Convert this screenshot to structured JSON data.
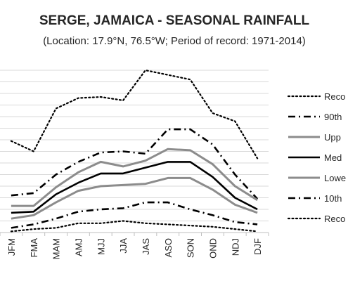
{
  "chart_data": {
    "type": "line",
    "title": "SERGE, JAMAICA - SEASONAL RAINFALL",
    "subtitle": "(Location: 17.9°N, 76.5°W; Period of record: 1971-2014)",
    "categories": [
      "JFM",
      "FMA",
      "MAM",
      "AMJ",
      "MJJ",
      "JJA",
      "JAS",
      "ASO",
      "SON",
      "OND",
      "NDJ",
      "DJF"
    ],
    "ylim": [
      0,
      14
    ],
    "grid": true,
    "legend_position": "right",
    "series": [
      {
        "name": "Reco",
        "style": "dotted",
        "color": "#000000",
        "values": [
          7.9,
          7.0,
          10.7,
          11.6,
          11.7,
          11.4,
          14.0,
          13.6,
          13.2,
          10.3,
          9.6,
          6.4
        ]
      },
      {
        "name": "90th",
        "style": "dashdot",
        "color": "#000000",
        "values": [
          3.2,
          3.4,
          5.0,
          6.1,
          6.9,
          7.0,
          6.8,
          8.9,
          8.9,
          7.6,
          5.0,
          2.9
        ]
      },
      {
        "name": "Upp",
        "style": "solid",
        "color": "#8c8c8c",
        "values": [
          2.3,
          2.3,
          3.9,
          5.2,
          6.1,
          5.7,
          6.2,
          7.2,
          7.1,
          5.9,
          4.0,
          2.8
        ]
      },
      {
        "name": "Med",
        "style": "solid",
        "color": "#000000",
        "values": [
          1.7,
          1.8,
          3.3,
          4.3,
          5.1,
          5.1,
          5.6,
          6.1,
          6.1,
          4.8,
          3.0,
          2.0
        ]
      },
      {
        "name": "Lowe",
        "style": "solid",
        "color": "#8c8c8c",
        "values": [
          1.2,
          1.5,
          2.6,
          3.6,
          4.0,
          4.1,
          4.2,
          4.7,
          4.7,
          3.7,
          2.4,
          1.7
        ]
      },
      {
        "name": "10th",
        "style": "dashdot",
        "color": "#000000",
        "values": [
          0.4,
          0.7,
          1.2,
          1.8,
          2.0,
          2.1,
          2.6,
          2.6,
          2.0,
          1.5,
          0.9,
          0.7
        ]
      },
      {
        "name": "Reco",
        "style": "dotted",
        "color": "#000000",
        "values": [
          0.1,
          0.3,
          0.4,
          0.8,
          0.8,
          1.0,
          0.8,
          0.7,
          0.6,
          0.5,
          0.3,
          0.1
        ]
      }
    ]
  }
}
